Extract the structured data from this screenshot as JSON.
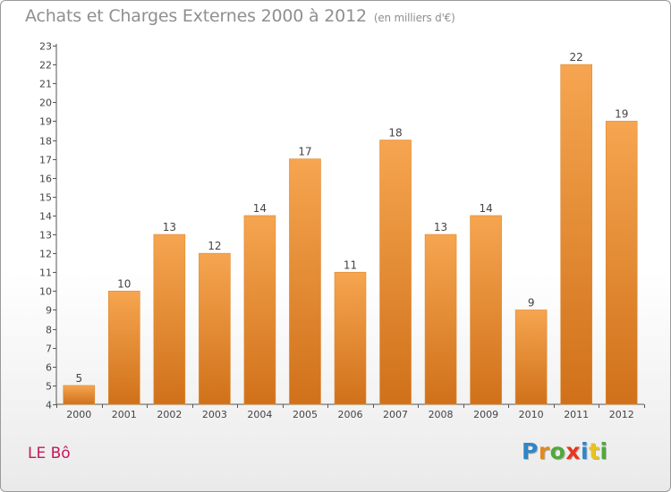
{
  "page": {
    "location_label": "LE Bô",
    "logo_text": "Proxiti",
    "logo_colors": [
      "#2e86c8",
      "#e28a1c",
      "#4fa93a",
      "#e8361f",
      "#2e86c8",
      "#e8c21f",
      "#4fa93a"
    ]
  },
  "chart_data": {
    "type": "bar",
    "title": "Achats et Charges Externes 2000 à 2012",
    "subtitle": "(en milliers d'€)",
    "categories": [
      "2000",
      "2001",
      "2002",
      "2003",
      "2004",
      "2005",
      "2006",
      "2007",
      "2008",
      "2009",
      "2010",
      "2011",
      "2012"
    ],
    "values": [
      5,
      10,
      13,
      12,
      14,
      17,
      11,
      18,
      13,
      14,
      9,
      22,
      19
    ],
    "ylim": [
      4,
      23
    ],
    "yticks": [
      4,
      5,
      6,
      7,
      8,
      9,
      10,
      11,
      12,
      13,
      14,
      15,
      16,
      17,
      18,
      19,
      20,
      21,
      22,
      23
    ],
    "grid": false,
    "bar_color_top": "#f6a550",
    "bar_color_bottom": "#d0711a",
    "xlabel": "",
    "ylabel": ""
  }
}
